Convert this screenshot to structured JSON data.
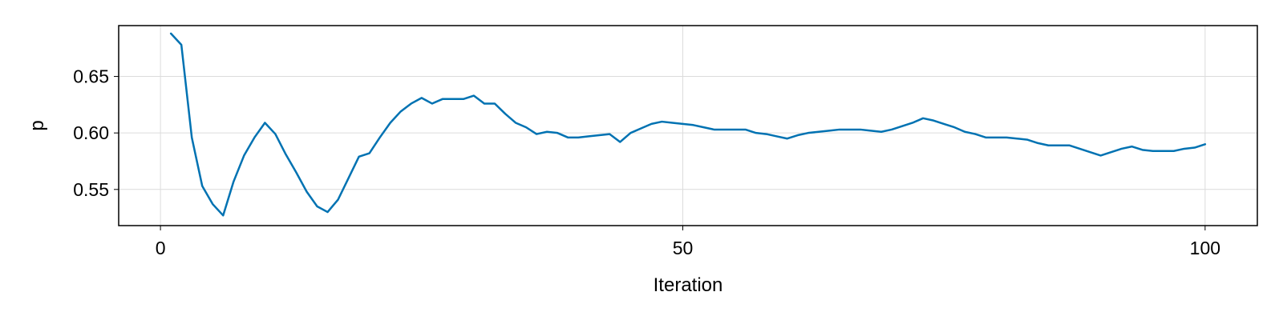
{
  "chart_data": {
    "type": "line",
    "title": "",
    "xlabel": "Iteration",
    "ylabel": "p",
    "xlim": [
      -4,
      105
    ],
    "ylim": [
      0.518,
      0.695
    ],
    "xticks": [
      0,
      50,
      100
    ],
    "xtick_labels": [
      "0",
      "50",
      "100"
    ],
    "yticks": [
      0.55,
      0.6,
      0.65
    ],
    "ytick_labels": [
      "0.55",
      "0.60",
      "0.65"
    ],
    "grid": true,
    "line_color": "#0072b2",
    "series": [
      {
        "x": [
          1,
          2,
          3,
          4,
          5,
          6,
          7,
          8,
          9,
          10,
          11,
          12,
          13,
          14,
          15,
          16,
          17,
          18,
          19,
          20,
          21,
          22,
          23,
          24,
          25,
          26,
          27,
          28,
          29,
          30,
          31,
          32,
          33,
          34,
          35,
          36,
          37,
          38,
          39,
          40,
          41,
          42,
          43,
          44,
          45,
          46,
          47,
          48,
          49,
          50,
          51,
          52,
          53,
          54,
          55,
          56,
          57,
          58,
          59,
          60,
          61,
          62,
          63,
          64,
          65,
          66,
          67,
          68,
          69,
          70,
          71,
          72,
          73,
          74,
          75,
          76,
          77,
          78,
          79,
          80,
          81,
          82,
          83,
          84,
          85,
          86,
          87,
          88,
          89,
          90,
          91,
          92,
          93,
          94,
          95,
          96,
          97,
          98,
          99,
          100
        ],
        "values": [
          0.688,
          0.678,
          0.596,
          0.553,
          0.537,
          0.527,
          0.557,
          0.58,
          0.596,
          0.609,
          0.599,
          0.581,
          0.565,
          0.548,
          0.535,
          0.53,
          0.541,
          0.56,
          0.579,
          0.582,
          0.596,
          0.609,
          0.619,
          0.626,
          0.631,
          0.626,
          0.63,
          0.63,
          0.63,
          0.633,
          0.626,
          0.626,
          0.617,
          0.609,
          0.605,
          0.599,
          0.601,
          0.6,
          0.596,
          0.596,
          0.597,
          0.598,
          0.599,
          0.592,
          0.6,
          0.604,
          0.608,
          0.61,
          0.609,
          0.608,
          0.607,
          0.605,
          0.603,
          0.603,
          0.603,
          0.603,
          0.6,
          0.599,
          0.597,
          0.595,
          0.598,
          0.6,
          0.601,
          0.602,
          0.603,
          0.603,
          0.603,
          0.602,
          0.601,
          0.603,
          0.606,
          0.609,
          0.613,
          0.611,
          0.608,
          0.605,
          0.601,
          0.599,
          0.596,
          0.596,
          0.596,
          0.595,
          0.594,
          0.591,
          0.589,
          0.589,
          0.589,
          0.586,
          0.583,
          0.58,
          0.583,
          0.586,
          0.588,
          0.585,
          0.584,
          0.584,
          0.584,
          0.586,
          0.587,
          0.59
        ]
      }
    ]
  }
}
